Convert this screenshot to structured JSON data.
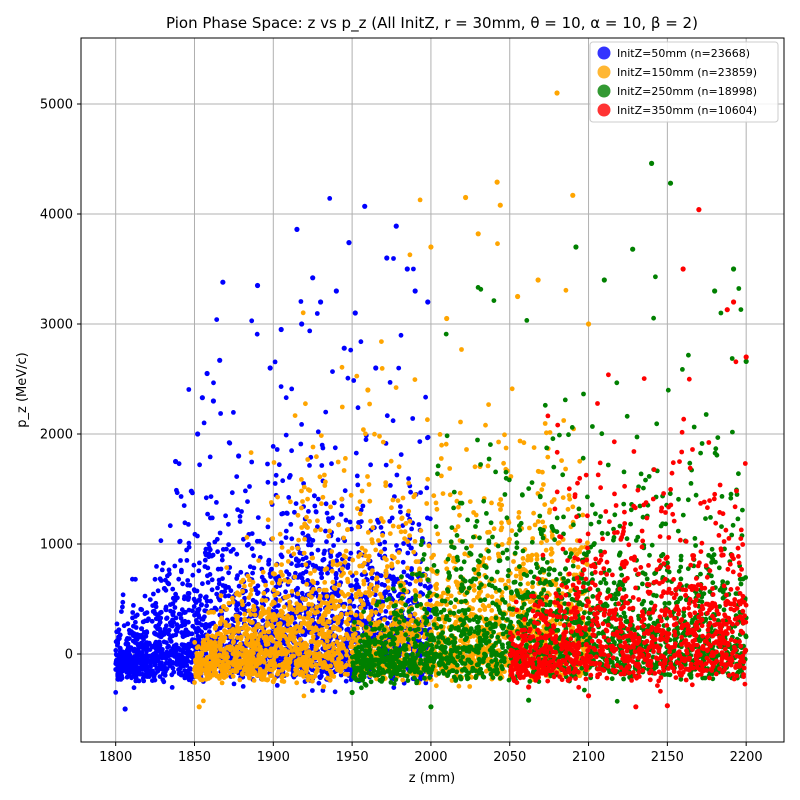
{
  "chart_data": {
    "type": "scatter",
    "title": "Pion Phase Space: z vs p_z (All InitZ, r = 30mm, θ = 10, α = 10, β = 2)",
    "xlabel": "z (mm)",
    "ylabel": "p_z (MeV/c)",
    "xlim": [
      1778,
      2224
    ],
    "ylim": [
      -800,
      5600
    ],
    "xticks": [
      1800,
      1850,
      1900,
      1950,
      2000,
      2050,
      2100,
      2150,
      2200
    ],
    "yticks": [
      0,
      1000,
      2000,
      3000,
      4000,
      5000
    ],
    "grid": true,
    "legend_position": "top-right",
    "series": [
      {
        "name": "InitZ=50mm (n=23668)",
        "color": "#0000ff",
        "count": 23668,
        "z_range": [
          1800,
          2000
        ],
        "points": [
          [
            1806,
            -500
          ],
          [
            1830,
            -120
          ],
          [
            1838,
            1750
          ],
          [
            1848,
            1480
          ],
          [
            1852,
            2000
          ],
          [
            1855,
            2330
          ],
          [
            1858,
            2550
          ],
          [
            1862,
            2300
          ],
          [
            1866,
            2670
          ],
          [
            1868,
            3380
          ],
          [
            1878,
            1800
          ],
          [
            1890,
            3350
          ],
          [
            1898,
            2600
          ],
          [
            1905,
            2950
          ],
          [
            1915,
            3860
          ],
          [
            1918,
            3000
          ],
          [
            1925,
            3420
          ],
          [
            1930,
            3200
          ],
          [
            1940,
            3300
          ],
          [
            1945,
            2780
          ],
          [
            1948,
            3740
          ],
          [
            1952,
            3100
          ],
          [
            1958,
            4070
          ],
          [
            1965,
            2600
          ],
          [
            1972,
            3600
          ],
          [
            1978,
            3890
          ],
          [
            1985,
            3500
          ],
          [
            1990,
            3300
          ],
          [
            1998,
            3200
          ]
        ]
      },
      {
        "name": "InitZ=150mm (n=23859)",
        "color": "#ffa500",
        "count": 23859,
        "z_range": [
          1850,
          2100
        ],
        "points": [
          [
            1853,
            -480
          ],
          [
            1870,
            -200
          ],
          [
            1900,
            -250
          ],
          [
            1960,
            2400
          ],
          [
            2000,
            3700
          ],
          [
            2010,
            3050
          ],
          [
            2022,
            4150
          ],
          [
            2030,
            3820
          ],
          [
            2042,
            4290
          ],
          [
            2044,
            4080
          ],
          [
            2055,
            3250
          ],
          [
            2068,
            3400
          ],
          [
            2080,
            5100
          ],
          [
            2090,
            4170
          ],
          [
            2100,
            3000
          ]
        ]
      },
      {
        "name": "InitZ=250mm (n=18998)",
        "color": "#008000",
        "count": 18998,
        "z_range": [
          1950,
          2200
        ],
        "points": [
          [
            1950,
            -350
          ],
          [
            2000,
            -480
          ],
          [
            2062,
            -420
          ],
          [
            2092,
            3700
          ],
          [
            2110,
            3400
          ],
          [
            2128,
            3680
          ],
          [
            2140,
            4460
          ],
          [
            2152,
            4280
          ],
          [
            2180,
            3300
          ],
          [
            2192,
            3500
          ],
          [
            2200,
            2660
          ]
        ]
      },
      {
        "name": "InitZ=350mm (n=10604)",
        "color": "#ff0000",
        "count": 10604,
        "z_range": [
          2050,
          2200
        ],
        "points": [
          [
            2062,
            -300
          ],
          [
            2100,
            -380
          ],
          [
            2130,
            -480
          ],
          [
            2150,
            -470
          ],
          [
            2170,
            4040
          ],
          [
            2160,
            3500
          ],
          [
            2188,
            3130
          ],
          [
            2192,
            3200
          ],
          [
            2200,
            2700
          ]
        ]
      }
    ]
  }
}
